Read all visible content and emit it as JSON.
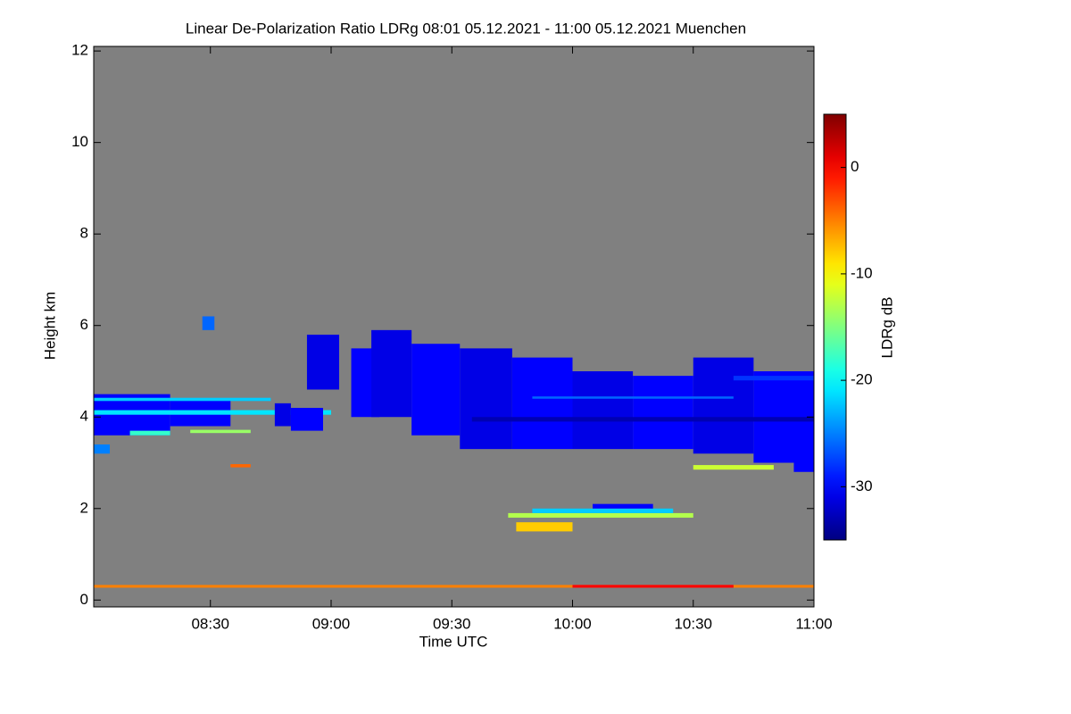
{
  "chart_data": {
    "type": "heatmap",
    "title": "Linear De-Polarization Ratio LDRg   08:01 05.12.2021 - 11:00 05.12.2021 Muenchen",
    "xlabel": "Time UTC",
    "ylabel": "Height km",
    "colorbar_label": "LDRg dB",
    "xlim": [
      481,
      660
    ],
    "xticks": [
      {
        "value": 510,
        "label": "08:30"
      },
      {
        "value": 540,
        "label": "09:00"
      },
      {
        "value": 570,
        "label": "09:30"
      },
      {
        "value": 600,
        "label": "10:00"
      },
      {
        "value": 630,
        "label": "10:30"
      },
      {
        "value": 660,
        "label": "11:00"
      }
    ],
    "ylim": [
      -0.15,
      12.1
    ],
    "yticks": [
      0,
      2,
      4,
      6,
      8,
      10,
      12
    ],
    "clim": [
      -35,
      5
    ],
    "cticks": [
      0,
      -10,
      -20,
      -30
    ],
    "colormap": "jet",
    "background": "#808080",
    "cells": [
      [
        481,
        500,
        3.6,
        4.5,
        -30
      ],
      [
        500,
        515,
        3.8,
        4.4,
        -30
      ],
      [
        481,
        540,
        4.05,
        4.15,
        -21
      ],
      [
        481,
        525,
        4.35,
        4.42,
        -22
      ],
      [
        526,
        530,
        3.8,
        4.3,
        -31
      ],
      [
        530,
        538,
        3.7,
        4.2,
        -30
      ],
      [
        534,
        542,
        4.6,
        5.8,
        -31
      ],
      [
        545,
        552,
        4.0,
        5.5,
        -30
      ],
      [
        550,
        560,
        4.0,
        5.9,
        -31
      ],
      [
        560,
        572,
        3.6,
        5.6,
        -30
      ],
      [
        572,
        585,
        3.3,
        5.5,
        -31
      ],
      [
        585,
        600,
        3.3,
        5.3,
        -30
      ],
      [
        600,
        615,
        3.3,
        5.0,
        -31
      ],
      [
        615,
        630,
        3.3,
        4.9,
        -30
      ],
      [
        630,
        645,
        3.2,
        5.3,
        -31
      ],
      [
        645,
        660,
        3.0,
        5.0,
        -30
      ],
      [
        655,
        660,
        2.8,
        3.1,
        -30
      ],
      [
        575,
        660,
        3.9,
        4.0,
        -33
      ],
      [
        590,
        640,
        4.4,
        4.45,
        -26
      ],
      [
        490,
        500,
        3.6,
        3.7,
        -18
      ],
      [
        505,
        520,
        3.65,
        3.72,
        -14
      ],
      [
        481,
        660,
        0.27,
        0.33,
        -5
      ],
      [
        600,
        640,
        0.27,
        0.33,
        0
      ],
      [
        584,
        630,
        1.8,
        1.9,
        -13
      ],
      [
        590,
        625,
        1.9,
        2.0,
        -22
      ],
      [
        605,
        620,
        2.0,
        2.1,
        -30
      ],
      [
        586,
        600,
        1.5,
        1.7,
        -8
      ],
      [
        481,
        485,
        3.2,
        3.4,
        -25
      ],
      [
        630,
        650,
        2.85,
        2.95,
        -12
      ],
      [
        515,
        520,
        2.9,
        2.97,
        -4
      ],
      [
        508,
        511,
        5.9,
        6.2,
        -26
      ],
      [
        640,
        660,
        4.8,
        4.9,
        -28
      ]
    ]
  }
}
